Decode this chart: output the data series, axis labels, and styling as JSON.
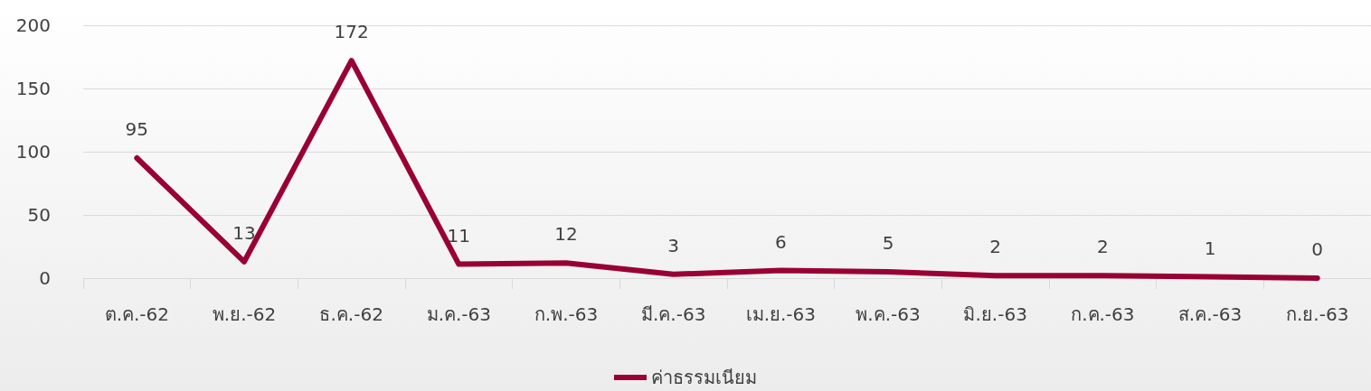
{
  "chart_data": {
    "type": "line",
    "categories": [
      "ต.ค.-62",
      "พ.ย.-62",
      "ธ.ค.-62",
      "ม.ค.-63",
      "ก.พ.-63",
      "มี.ค.-63",
      "เม.ย.-63",
      "พ.ค.-63",
      "มิ.ย.-63",
      "ก.ค.-63",
      "ส.ค.-63",
      "ก.ย.-63"
    ],
    "series": [
      {
        "name": "ค่าธรรมเนียม",
        "color": "#990033",
        "values": [
          95,
          13,
          172,
          11,
          12,
          3,
          6,
          5,
          2,
          2,
          1,
          0
        ]
      }
    ],
    "ylim": [
      0,
      200
    ],
    "yticks": [
      0,
      50,
      100,
      150,
      200
    ],
    "grid": "y",
    "legend": "bottom",
    "data_labels": true,
    "marker": "none",
    "line_style": "solid"
  }
}
